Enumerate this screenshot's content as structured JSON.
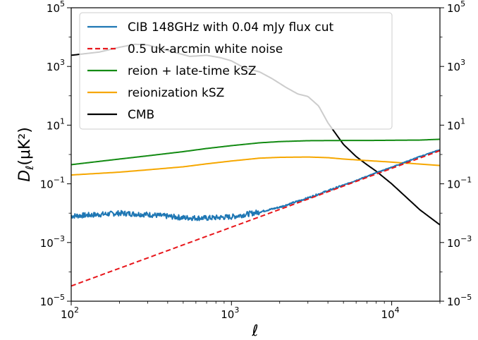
{
  "chart_data": {
    "type": "line",
    "xlabel": "ℓ",
    "ylabel_main": "D",
    "ylabel_sub": "ℓ",
    "ylabel_rest": "(μK²)",
    "xscale": "log",
    "yscale": "log",
    "xlim": [
      100,
      20000
    ],
    "ylim": [
      1e-05,
      100000
    ],
    "grid": false,
    "legend_position": "upper-left",
    "x_ticks": [
      {
        "value": 100,
        "base": "10",
        "exp": "2"
      },
      {
        "value": 1000,
        "base": "10",
        "exp": "3"
      },
      {
        "value": 10000,
        "base": "10",
        "exp": "4"
      }
    ],
    "y_ticks": [
      {
        "value": 1e-05,
        "base": "10",
        "exp": "−5"
      },
      {
        "value": 0.001,
        "base": "10",
        "exp": "−3"
      },
      {
        "value": 0.1,
        "base": "10",
        "exp": "−1"
      },
      {
        "value": 10,
        "base": "10",
        "exp": "1"
      },
      {
        "value": 1000,
        "base": "10",
        "exp": "3"
      },
      {
        "value": 100000,
        "base": "10",
        "exp": "5"
      }
    ],
    "series": [
      {
        "name": "CIB 148GHz with 0.04 mJy flux cut",
        "color": "#1f77b4",
        "style": "solid",
        "noisy": true,
        "x": [
          100,
          150,
          200,
          300,
          500,
          700,
          1000,
          1500,
          2000,
          3000,
          4000,
          5000,
          7000,
          10000,
          15000,
          20000
        ],
        "y": [
          0.008,
          0.009,
          0.01,
          0.009,
          0.007,
          0.0068,
          0.0075,
          0.011,
          0.016,
          0.033,
          0.058,
          0.09,
          0.18,
          0.37,
          0.85,
          1.45
        ]
      },
      {
        "name": "0.5 uk-arcmin white noise",
        "color": "#e8161b",
        "style": "dashed",
        "x": [
          100,
          20000
        ],
        "y": [
          3.3e-05,
          1.35
        ]
      },
      {
        "name": "reion + late-time kSZ",
        "color": "#138b13",
        "style": "solid",
        "x": [
          100,
          200,
          300,
          500,
          700,
          1000,
          1500,
          2000,
          3000,
          5000,
          7000,
          10000,
          15000,
          20000
        ],
        "y": [
          0.45,
          0.7,
          0.9,
          1.25,
          1.6,
          2.0,
          2.5,
          2.75,
          2.95,
          3.0,
          3.0,
          3.05,
          3.1,
          3.3
        ]
      },
      {
        "name": "reionization kSZ",
        "color": "#f6a700",
        "style": "solid",
        "x": [
          100,
          200,
          300,
          500,
          700,
          1000,
          1500,
          2000,
          3000,
          4000,
          5000,
          7000,
          10000,
          15000,
          20000
        ],
        "y": [
          0.2,
          0.25,
          0.3,
          0.38,
          0.48,
          0.6,
          0.75,
          0.8,
          0.82,
          0.78,
          0.7,
          0.62,
          0.55,
          0.47,
          0.42
        ]
      },
      {
        "name": "CMB",
        "color": "#000000",
        "style": "solid",
        "x": [
          100,
          150,
          200,
          250,
          300,
          400,
          550,
          700,
          850,
          1000,
          1200,
          1500,
          1800,
          2200,
          2600,
          3000,
          3500,
          4000,
          5000,
          6000,
          7000,
          8000,
          10000,
          12000,
          15000,
          20000
        ],
        "y": [
          2400,
          3100,
          4500,
          5700,
          5400,
          3500,
          2200,
          2400,
          2000,
          1550,
          900,
          650,
          380,
          190,
          115,
          95,
          45,
          12,
          2.2,
          0.85,
          0.45,
          0.27,
          0.1,
          0.04,
          0.013,
          0.004
        ]
      }
    ]
  }
}
